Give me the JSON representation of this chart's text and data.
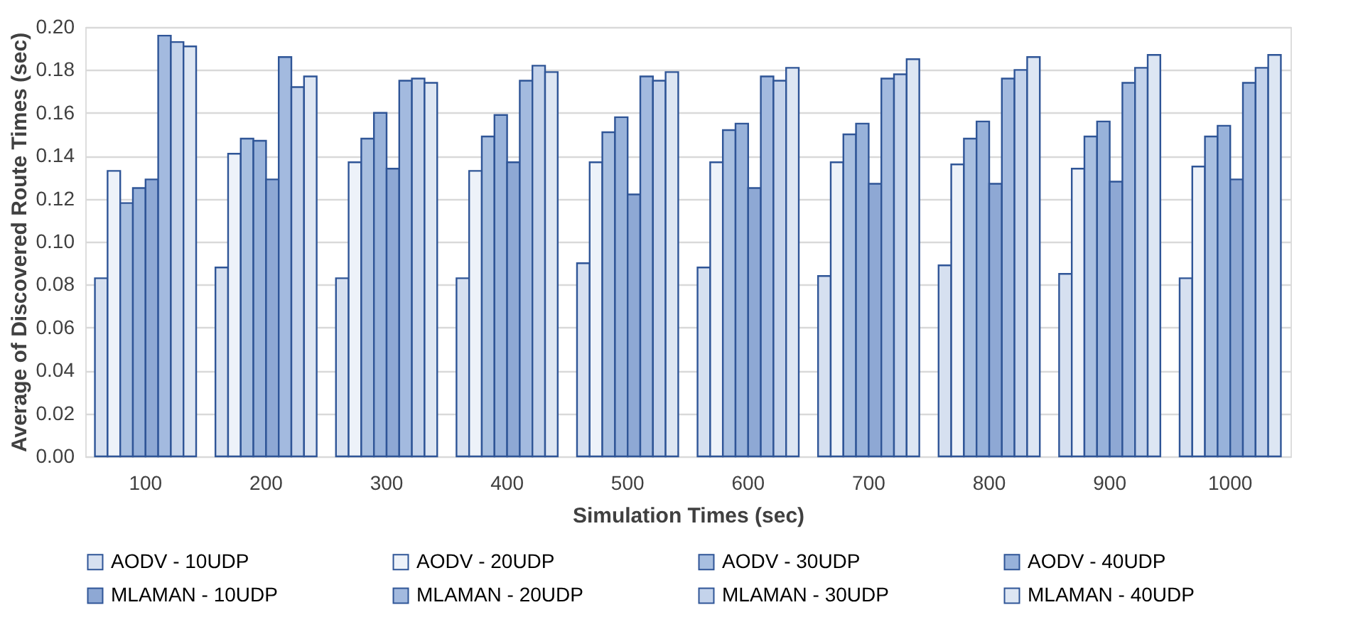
{
  "chart_data": {
    "type": "bar",
    "xlabel": "Simulation Times (sec)",
    "ylabel": "Average of Discovered Route Times (sec)",
    "categories": [
      "100",
      "200",
      "300",
      "400",
      "500",
      "600",
      "700",
      "800",
      "900",
      "1000"
    ],
    "series": [
      {
        "name": "AODV - 10UDP",
        "color": "#d6e0f0",
        "values": [
          0.083,
          0.088,
          0.083,
          0.083,
          0.09,
          0.088,
          0.084,
          0.089,
          0.085,
          0.083
        ]
      },
      {
        "name": "AODV - 20UDP",
        "color": "#edf2f9",
        "values": [
          0.133,
          0.141,
          0.137,
          0.133,
          0.137,
          0.137,
          0.137,
          0.136,
          0.134,
          0.135
        ]
      },
      {
        "name": "AODV - 30UDP",
        "color": "#a8bfe0",
        "values": [
          0.118,
          0.148,
          0.148,
          0.149,
          0.151,
          0.152,
          0.15,
          0.148,
          0.149,
          0.149
        ]
      },
      {
        "name": "AODV - 40UDP",
        "color": "#98b2da",
        "values": [
          0.125,
          0.147,
          0.16,
          0.159,
          0.158,
          0.155,
          0.155,
          0.156,
          0.156,
          0.154
        ]
      },
      {
        "name": "MLAMAN - 10UDP",
        "color": "#8ea8d4",
        "values": [
          0.129,
          0.129,
          0.134,
          0.137,
          0.122,
          0.125,
          0.127,
          0.127,
          0.128,
          0.129
        ]
      },
      {
        "name": "MLAMAN - 20UDP",
        "color": "#a3badf",
        "values": [
          0.196,
          0.186,
          0.175,
          0.175,
          0.177,
          0.177,
          0.176,
          0.176,
          0.174,
          0.174
        ]
      },
      {
        "name": "MLAMAN - 30UDP",
        "color": "#c4d3eb",
        "values": [
          0.193,
          0.172,
          0.176,
          0.182,
          0.175,
          0.175,
          0.178,
          0.18,
          0.181,
          0.181
        ]
      },
      {
        "name": "MLAMAN - 40UDP",
        "color": "#dde6f3",
        "values": [
          0.191,
          0.177,
          0.174,
          0.179,
          0.179,
          0.181,
          0.185,
          0.186,
          0.187,
          0.187
        ]
      }
    ],
    "ylim": [
      0,
      0.2
    ],
    "yticks": [
      {
        "value": 0,
        "label": "0.00"
      },
      {
        "value": 0.02,
        "label": "0.02"
      },
      {
        "value": 0.04,
        "label": "0.04"
      },
      {
        "value": 0.06,
        "label": "0.06"
      },
      {
        "value": 0.08,
        "label": "0.08"
      },
      {
        "value": 0.1,
        "label": "0.10"
      },
      {
        "value": 0.12,
        "label": "0.12"
      },
      {
        "value": 0.14,
        "label": "0.14"
      },
      {
        "value": 0.16,
        "label": "0.16"
      },
      {
        "value": 0.18,
        "label": "0.18"
      },
      {
        "value": 0.2,
        "label": "0.20"
      }
    ],
    "grid": "y",
    "legend": "bottom"
  }
}
